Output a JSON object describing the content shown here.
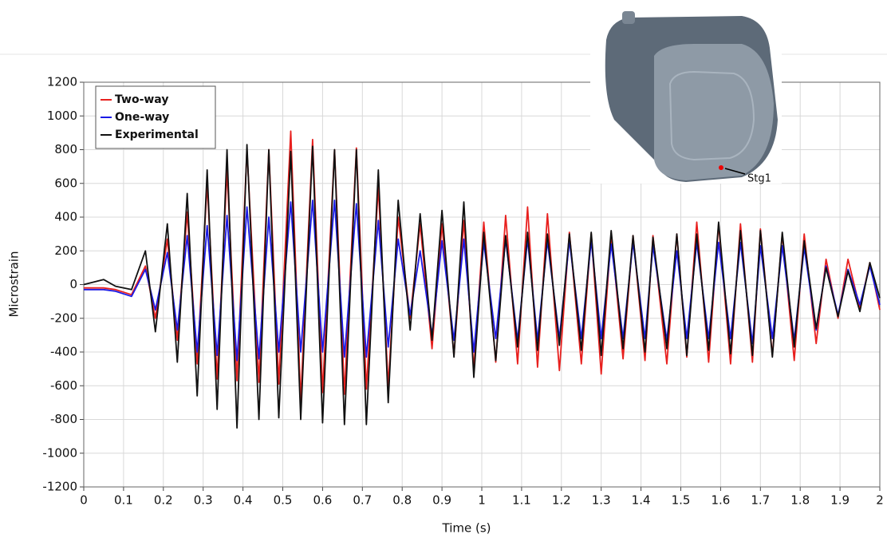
{
  "chart_data": {
    "type": "line",
    "x_label": "Time (s)",
    "y_label": "Microstrain",
    "x": [
      0,
      0.05,
      0.08,
      0.12,
      0.155,
      0.18,
      0.21,
      0.235,
      0.26,
      0.285,
      0.31,
      0.335,
      0.36,
      0.385,
      0.41,
      0.44,
      0.465,
      0.49,
      0.52,
      0.545,
      0.575,
      0.6,
      0.63,
      0.655,
      0.685,
      0.71,
      0.74,
      0.765,
      0.79,
      0.82,
      0.845,
      0.875,
      0.9,
      0.93,
      0.955,
      0.98,
      1.005,
      1.035,
      1.06,
      1.09,
      1.115,
      1.14,
      1.165,
      1.195,
      1.22,
      1.25,
      1.275,
      1.3,
      1.325,
      1.355,
      1.38,
      1.41,
      1.43,
      1.465,
      1.49,
      1.515,
      1.54,
      1.57,
      1.595,
      1.625,
      1.65,
      1.68,
      1.7,
      1.73,
      1.755,
      1.785,
      1.81,
      1.84,
      1.865,
      1.895,
      1.92,
      1.95,
      1.975,
      2.0
    ],
    "series": [
      {
        "name": "Two-way",
        "color": "#e8201e",
        "values": [
          -20,
          -20,
          -30,
          -60,
          110,
          -200,
          270,
          -330,
          430,
          -470,
          600,
          -560,
          680,
          -570,
          800,
          -580,
          800,
          -590,
          910,
          -690,
          860,
          -640,
          800,
          -650,
          810,
          -620,
          580,
          -600,
          400,
          -200,
          360,
          -380,
          360,
          -420,
          380,
          -500,
          370,
          -460,
          410,
          -470,
          460,
          -490,
          420,
          -510,
          310,
          -470,
          300,
          -530,
          300,
          -440,
          290,
          -450,
          290,
          -470,
          300,
          -430,
          370,
          -460,
          360,
          -470,
          360,
          -460,
          330,
          -420,
          300,
          -450,
          300,
          -350,
          150,
          -200,
          150,
          -140,
          130,
          -150
        ]
      },
      {
        "name": "One-way",
        "color": "#1a1ae6",
        "values": [
          -30,
          -30,
          -40,
          -70,
          90,
          -150,
          190,
          -270,
          290,
          -400,
          350,
          -420,
          410,
          -450,
          460,
          -440,
          400,
          -400,
          490,
          -400,
          500,
          -400,
          500,
          -430,
          480,
          -430,
          380,
          -370,
          270,
          -180,
          200,
          -300,
          260,
          -330,
          270,
          -400,
          250,
          -320,
          270,
          -330,
          270,
          -330,
          260,
          -320,
          260,
          -320,
          260,
          -320,
          240,
          -320,
          250,
          -320,
          230,
          -330,
          200,
          -320,
          250,
          -320,
          250,
          -320,
          250,
          -350,
          230,
          -320,
          230,
          -330,
          220,
          -270,
          110,
          -180,
          90,
          -120,
          110,
          -120
        ]
      },
      {
        "name": "Experimental",
        "color": "#111111",
        "values": [
          0,
          30,
          -10,
          -30,
          200,
          -280,
          360,
          -460,
          540,
          -660,
          680,
          -740,
          800,
          -850,
          830,
          -800,
          800,
          -790,
          790,
          -800,
          820,
          -820,
          800,
          -830,
          800,
          -830,
          680,
          -700,
          500,
          -270,
          420,
          -330,
          440,
          -430,
          490,
          -550,
          310,
          -450,
          290,
          -370,
          310,
          -390,
          300,
          -360,
          300,
          -390,
          310,
          -420,
          320,
          -380,
          290,
          -400,
          280,
          -380,
          300,
          -420,
          300,
          -390,
          370,
          -410,
          320,
          -420,
          320,
          -430,
          310,
          -370,
          260,
          -260,
          100,
          -190,
          80,
          -160,
          130,
          -80
        ]
      }
    ],
    "xlim": [
      0,
      2
    ],
    "xticks": [
      0,
      0.1,
      0.2,
      0.3,
      0.4,
      0.5,
      0.6,
      0.7,
      0.8,
      0.9,
      1,
      1.1,
      1.2,
      1.3,
      1.4,
      1.5,
      1.6,
      1.7,
      1.8,
      1.9,
      2
    ],
    "ylim": [
      -1200,
      1200
    ],
    "yticks": [
      -1200,
      -1000,
      -800,
      -600,
      -400,
      -200,
      0,
      200,
      400,
      600,
      800,
      1000,
      1200
    ],
    "grid": true,
    "legend": "upper left",
    "inset_label": "Stg1"
  }
}
